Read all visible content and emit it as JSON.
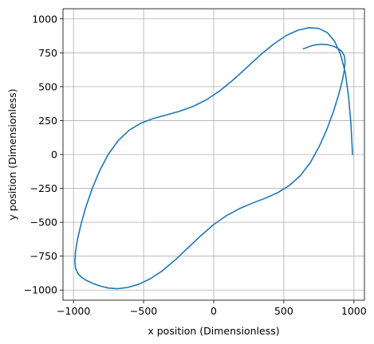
{
  "chart_data": {
    "type": "line",
    "title": "",
    "xlabel": "x position (Dimensionless)",
    "ylabel": "y position (Dimensionless)",
    "xlim": [
      -1075,
      1075
    ],
    "ylim": [
      -1075,
      1075
    ],
    "xticks": [
      -1000,
      -500,
      0,
      500,
      1000
    ],
    "yticks": [
      -1000,
      -750,
      -500,
      -250,
      0,
      250,
      500,
      750,
      1000
    ],
    "xtick_labels": [
      "−1000",
      "−500",
      "0",
      "500",
      "1000"
    ],
    "ytick_labels": [
      "−1000",
      "−750",
      "−500",
      "−250",
      "0",
      "250",
      "500",
      "750",
      "1000"
    ],
    "grid": true,
    "aspect": "equal",
    "colors": {
      "series": "#1f77b4",
      "grid": "#b0b0b0",
      "axis": "#000000"
    },
    "series": [
      {
        "name": "",
        "description_of_shape": "",
        "x": [
          990,
          979,
          962,
          939,
          905,
          862,
          810,
          749,
          680,
          603,
          520,
          432,
          339,
          243,
          145,
          47,
          -51,
          -149,
          -246,
          -341,
          -433,
          -521,
          -604,
          -681,
          -751,
          -813,
          -866,
          -911,
          -946,
          -971,
          -986,
          -990,
          -985,
          -969,
          -943,
          -908,
          -864,
          -812,
          -752,
          -686,
          -614,
          -536,
          -454,
          -369,
          -280,
          -189,
          -96,
          -3,
          91,
          185,
          278,
          369,
          456,
          539,
          617,
          689,
          753,
          809,
          855,
          891,
          917,
          932,
          937,
          932,
          916,
          890,
          855,
          811,
          760,
          703,
          640
        ],
        "y": [
          0,
          222,
          426,
          601,
          738,
          836,
          899,
          930,
          935,
          918,
          879,
          818,
          740,
          648,
          556,
          472,
          404,
          354,
          318,
          291,
          265,
          230,
          178,
          103,
          3,
          -118,
          -250,
          -385,
          -512,
          -624,
          -716,
          -788,
          -841,
          -878,
          -906,
          -929,
          -950,
          -970,
          -985,
          -990,
          -981,
          -958,
          -918,
          -860,
          -783,
          -694,
          -603,
          -519,
          -451,
          -399,
          -358,
          -322,
          -282,
          -229,
          -157,
          -60,
          60,
          190,
          320,
          441,
          544,
          625,
          684,
          727,
          757,
          780,
          798,
          810,
          813,
          804,
          780
        ]
      }
    ]
  }
}
